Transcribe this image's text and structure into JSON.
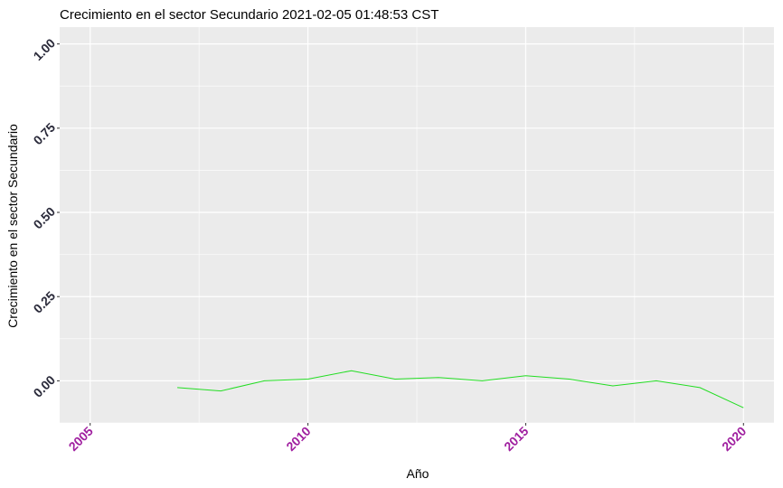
{
  "chart_data": {
    "type": "line",
    "title": "Crecimiento en el sector Secundario 2021-02-05 01:48:53 CST",
    "xlabel": "Año",
    "ylabel": "Crecimiento en el sector Secundario",
    "x": [
      2007,
      2008,
      2009,
      2010,
      2011,
      2012,
      2013,
      2014,
      2015,
      2016,
      2017,
      2018,
      2019,
      2020
    ],
    "series": [
      {
        "values": [
          -0.02,
          -0.03,
          0.0,
          0.005,
          0.03,
          0.005,
          0.01,
          0.0,
          0.015,
          0.005,
          -0.015,
          0.0,
          -0.02,
          -0.08
        ]
      }
    ],
    "xlim": [
      2004.3,
      2020.7
    ],
    "ylim": [
      -0.125,
      1.05
    ],
    "xticks": [
      2005,
      2010,
      2015,
      2020
    ],
    "xtick_labels": [
      "2005",
      "2010",
      "2015",
      "2020"
    ],
    "yticks": [
      0,
      0.25,
      0.5,
      0.75,
      1.0
    ],
    "ytick_labels": [
      "0.00",
      "0.25",
      "0.50",
      "0.75",
      "1.00"
    ],
    "grid": true,
    "colors": {
      "panel": "#ebebeb",
      "grid": "#ffffff",
      "line": "#22dd22",
      "ytick": "#2a2a3a",
      "xtick": "#a020a0"
    }
  }
}
